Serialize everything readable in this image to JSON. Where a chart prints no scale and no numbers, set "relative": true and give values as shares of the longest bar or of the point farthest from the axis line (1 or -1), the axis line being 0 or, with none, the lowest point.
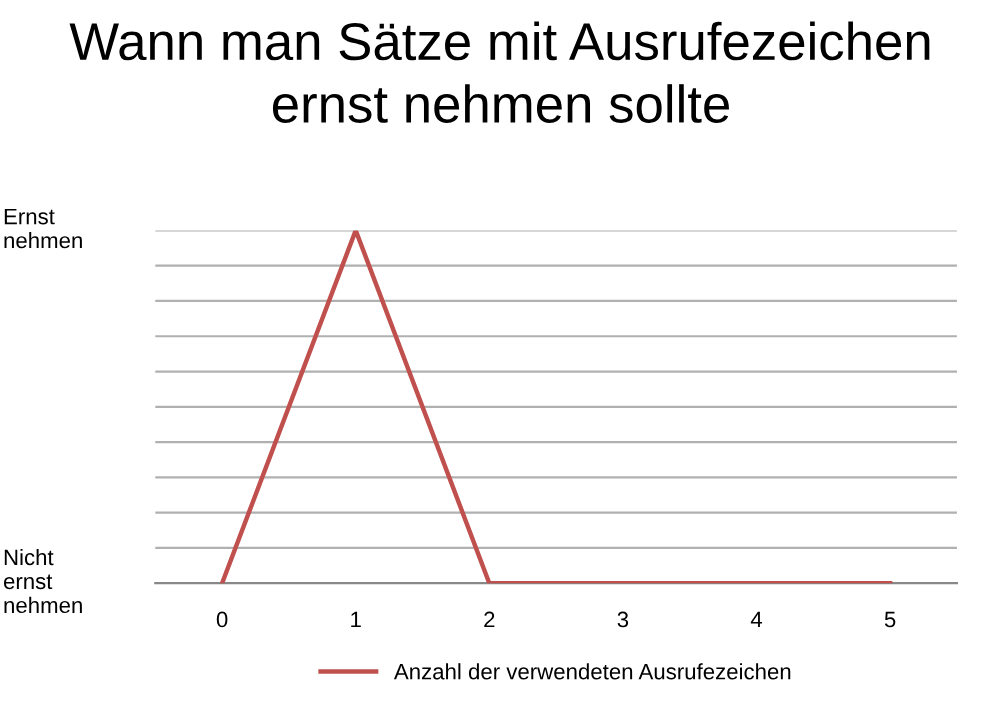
{
  "chart_data": {
    "type": "line",
    "title": "Wann man Sätze mit Ausrufezeichen\nernst nehmen sollte",
    "x": [
      0,
      1,
      2,
      3,
      4,
      5
    ],
    "series": [
      {
        "name": "Anzahl der verwendeten Ausrufezeichen",
        "color": "#c0504d",
        "values": [
          0,
          1,
          0,
          0,
          0,
          0
        ]
      }
    ],
    "xlim": [
      -0.5,
      5.5
    ],
    "xticks": [
      0,
      1,
      2,
      3,
      4,
      5
    ],
    "relative": true,
    "annotations": [
      "Ernst\nnehmen",
      "Nicht\nernst\nnehmen"
    ],
    "grid": "y",
    "legend": "bottom",
    "marker": "none",
    "line_style": "solid"
  }
}
